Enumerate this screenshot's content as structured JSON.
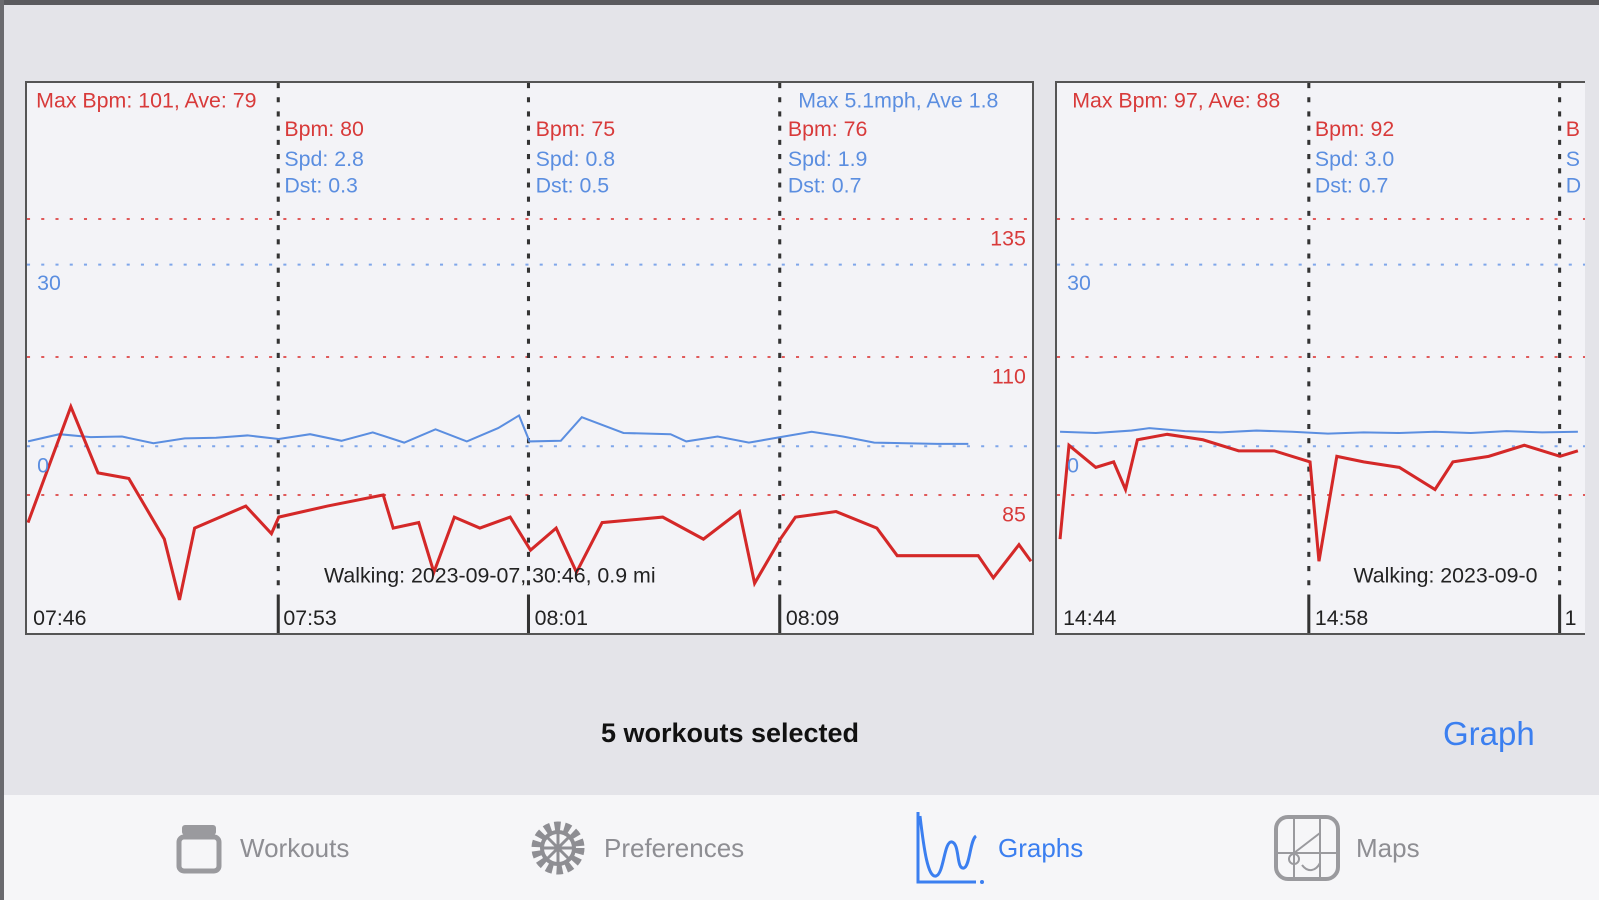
{
  "colors": {
    "bpm": "#d83a3a",
    "speed": "#5b8ee0",
    "accent": "#3b7ff0",
    "inactive": "#8e8e93"
  },
  "charts": [
    {
      "header_bpm": "Max Bpm: 101, Ave: 79",
      "header_speed": "Max  5.1mph, Ave  1.8",
      "bpm_ticks": [
        "135",
        "110",
        "85"
      ],
      "speed_ticks": [
        "30",
        "0"
      ],
      "time_labels": [
        "07:46",
        "07:53",
        "08:01",
        "08:09"
      ],
      "segments": [
        {
          "bpm": "Bpm: 80",
          "spd": "Spd:  2.8",
          "dst": "Dst:  0.3"
        },
        {
          "bpm": "Bpm: 75",
          "spd": "Spd:  0.8",
          "dst": "Dst:  0.5"
        },
        {
          "bpm": "Bpm: 76",
          "spd": "Spd:  1.9",
          "dst": "Dst:  0.7"
        }
      ],
      "caption": "Walking: 2023-09-07, 30:46,  0.9 mi"
    },
    {
      "header_bpm": "Max Bpm: 97, Ave: 88",
      "bpm_ticks": [],
      "speed_ticks": [
        "30",
        "0"
      ],
      "time_labels": [
        "14:44",
        "14:58",
        "1"
      ],
      "segments": [
        {
          "bpm": "Bpm: 92",
          "spd": "Spd:  3.0",
          "dst": "Dst:  0.7"
        },
        {
          "bpm": "B",
          "spd": "S",
          "dst": "D"
        }
      ],
      "caption": "Walking: 2023-09-0"
    }
  ],
  "chart_data": [
    {
      "type": "line",
      "x_range": [
        "07:45:00",
        "08:17:00"
      ],
      "bpm_grid": [
        85,
        110,
        135
      ],
      "speed_grid": [
        0,
        30
      ],
      "series": [
        {
          "name": "Bpm",
          "points": [
            [
              "07:45:00",
              80
            ],
            [
              "07:46:22",
              101
            ],
            [
              "07:47:14",
              89
            ],
            [
              "07:48:13",
              88
            ],
            [
              "07:49:21",
              77
            ],
            [
              "07:49:50",
              66
            ],
            [
              "07:50:19",
              79
            ],
            [
              "07:51:57",
              83
            ],
            [
              "07:52:46",
              78
            ],
            [
              "07:53:00",
              81
            ],
            [
              "07:54:33",
              83
            ],
            [
              "07:56:20",
              85
            ],
            [
              "07:56:39",
              79
            ],
            [
              "07:57:28",
              80
            ],
            [
              "07:57:57",
              71
            ],
            [
              "07:58:36",
              81
            ],
            [
              "07:59:25",
              79
            ],
            [
              "08:00:23",
              81
            ],
            [
              "08:01:02",
              75
            ],
            [
              "08:01:51",
              79
            ],
            [
              "08:02:30",
              71
            ],
            [
              "08:03:19",
              80
            ],
            [
              "08:05:15",
              81
            ],
            [
              "08:06:33",
              77
            ],
            [
              "08:07:42",
              82
            ],
            [
              "08:08:11",
              69
            ],
            [
              "08:09:00",
              77
            ],
            [
              "08:09:29",
              81
            ],
            [
              "08:10:47",
              82
            ],
            [
              "08:12:05",
              79
            ],
            [
              "08:12:44",
              74
            ],
            [
              "08:14:02",
              74
            ],
            [
              "08:15:19",
              74
            ],
            [
              "08:15:48",
              70
            ],
            [
              "08:16:37",
              76
            ],
            [
              "08:17:00",
              73
            ]
          ]
        },
        {
          "name": "Spd",
          "points": [
            [
              "07:45:00",
              0.8
            ],
            [
              "07:46:00",
              2.0
            ],
            [
              "07:47:00",
              1.5
            ],
            [
              "07:48:00",
              1.6
            ],
            [
              "07:49:00",
              0.5
            ],
            [
              "07:50:00",
              1.3
            ],
            [
              "07:51:00",
              1.4
            ],
            [
              "07:52:00",
              1.8
            ],
            [
              "07:53:00",
              1.2
            ],
            [
              "07:54:00",
              2.0
            ],
            [
              "07:55:00",
              0.9
            ],
            [
              "07:56:00",
              2.3
            ],
            [
              "07:57:00",
              0.6
            ],
            [
              "07:58:00",
              2.8
            ],
            [
              "07:59:00",
              0.8
            ],
            [
              "08:00:00",
              3.0
            ],
            [
              "08:00:40",
              5.1
            ],
            [
              "08:01:00",
              0.8
            ],
            [
              "08:02:00",
              0.9
            ],
            [
              "08:02:40",
              4.8
            ],
            [
              "08:04:00",
              2.2
            ],
            [
              "08:05:30",
              2.0
            ],
            [
              "08:06:00",
              0.8
            ],
            [
              "08:07:00",
              1.6
            ],
            [
              "08:08:00",
              0.6
            ],
            [
              "08:09:00",
              1.5
            ],
            [
              "08:10:00",
              2.4
            ],
            [
              "08:11:00",
              1.6
            ],
            [
              "08:12:00",
              0.6
            ],
            [
              "08:13:00",
              0.5
            ],
            [
              "08:14:00",
              0.4
            ],
            [
              "08:15:00",
              0.4
            ]
          ]
        }
      ]
    },
    {
      "type": "line",
      "x_range": [
        "14:43:00",
        "15:12:00"
      ],
      "bpm_grid": [
        85,
        110,
        135
      ],
      "speed_grid": [
        0,
        30
      ],
      "series": [
        {
          "name": "Bpm",
          "points": [
            [
              "14:43:00",
              77
            ],
            [
              "14:43:30",
              94
            ],
            [
              "14:45:00",
              90
            ],
            [
              "14:46:00",
              91
            ],
            [
              "14:46:40",
              86
            ],
            [
              "14:47:20",
              95
            ],
            [
              "14:49:00",
              96
            ],
            [
              "14:51:00",
              95
            ],
            [
              "14:53:00",
              93
            ],
            [
              "14:55:00",
              93
            ],
            [
              "14:57:00",
              91
            ],
            [
              "14:57:30",
              73
            ],
            [
              "14:58:30",
              92
            ],
            [
              "15:00:00",
              91
            ],
            [
              "15:02:00",
              90
            ],
            [
              "15:04:00",
              86
            ],
            [
              "15:05:00",
              91
            ],
            [
              "15:07:00",
              92
            ],
            [
              "15:09:00",
              94
            ],
            [
              "15:11:00",
              92
            ],
            [
              "15:12:00",
              93
            ]
          ]
        },
        {
          "name": "Spd",
          "points": [
            [
              "14:43:00",
              2.4
            ],
            [
              "14:45:00",
              2.2
            ],
            [
              "14:47:00",
              2.6
            ],
            [
              "14:48:00",
              3.0
            ],
            [
              "14:50:00",
              2.5
            ],
            [
              "14:52:00",
              2.3
            ],
            [
              "14:54:00",
              2.6
            ],
            [
              "14:56:00",
              2.4
            ],
            [
              "14:58:00",
              2.1
            ],
            [
              "15:00:00",
              2.3
            ],
            [
              "15:02:00",
              2.2
            ],
            [
              "15:04:00",
              2.4
            ],
            [
              "15:06:00",
              2.2
            ],
            [
              "15:08:00",
              2.5
            ],
            [
              "15:10:00",
              2.3
            ],
            [
              "15:12:00",
              2.4
            ]
          ]
        }
      ]
    }
  ],
  "footer": {
    "summary": "5 workouts selected",
    "graph_button": "Graph"
  },
  "tabs": [
    {
      "label": "Workouts",
      "icon": "jar-icon",
      "active": false
    },
    {
      "label": "Preferences",
      "icon": "gear-icon",
      "active": false
    },
    {
      "label": "Graphs",
      "icon": "graph-icon",
      "active": true
    },
    {
      "label": "Maps",
      "icon": "map-icon",
      "active": false
    }
  ]
}
